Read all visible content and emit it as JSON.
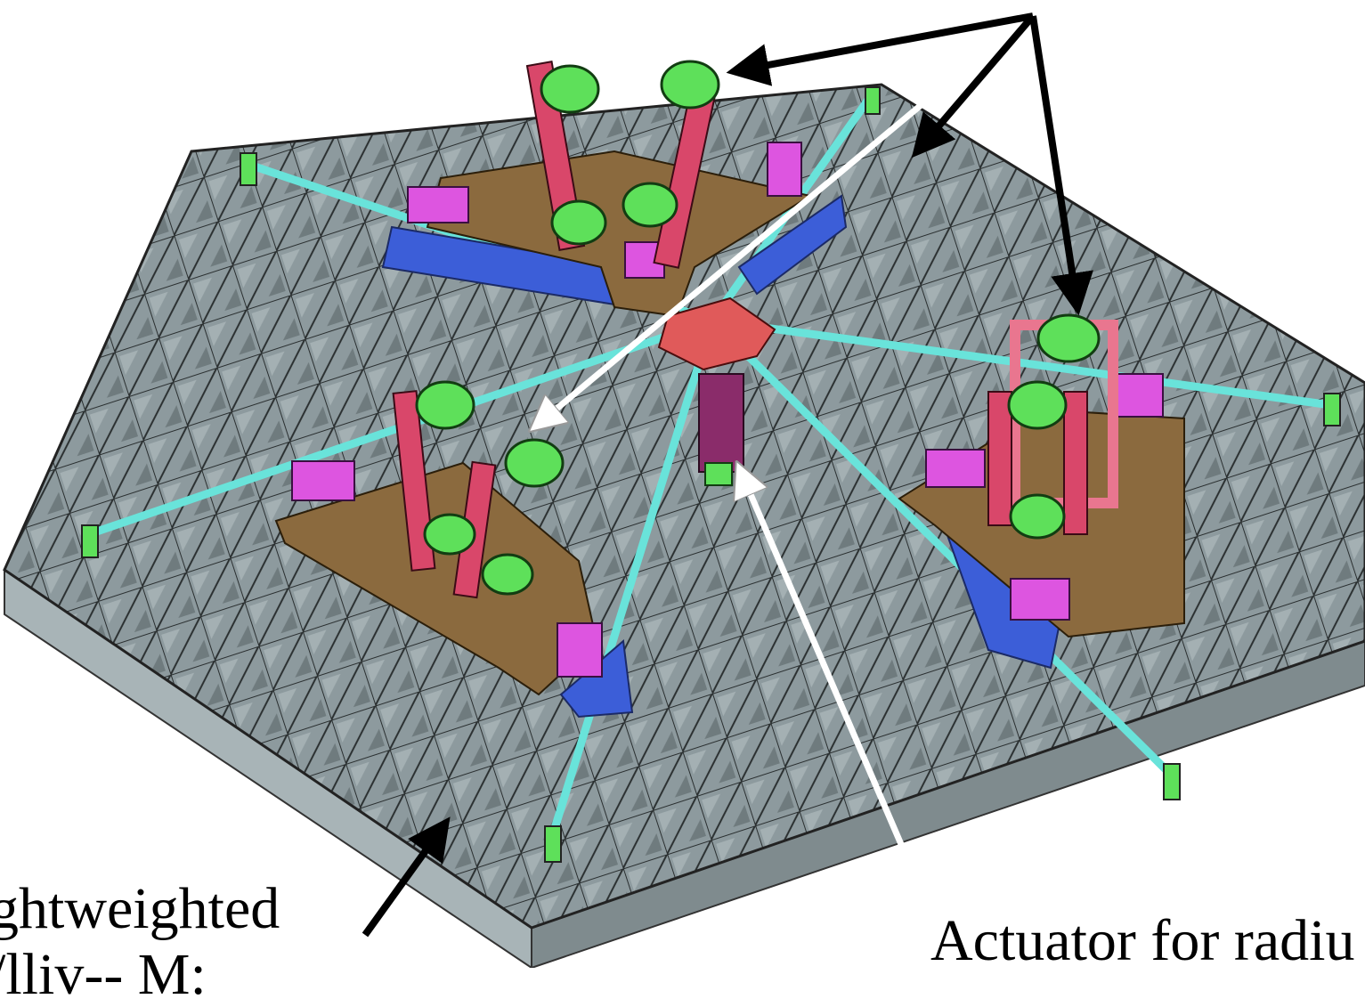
{
  "labels": {
    "mirror_line1": "ghtweighted",
    "mirror_line2": "/lliv-- M:",
    "actuator": "Actuator for radiu"
  },
  "colors": {
    "background": "#ffffff",
    "mirror_top": "#8d9a9e",
    "mirror_side": "#a8b4b7",
    "mirror_front": "#7f8b8e",
    "rib_lines": "#2a2f30",
    "strut": "#69e3da",
    "support_plate": "#8b6a3e",
    "whiffle_bar": "#3c5ed8",
    "actuator_post": "#d9476a",
    "actuator_coil": "#5ee05a",
    "block": "#dd55e0",
    "center_hub": "#e05a5a",
    "arrow_black": "#000000",
    "arrow_white": "#ffffff"
  }
}
